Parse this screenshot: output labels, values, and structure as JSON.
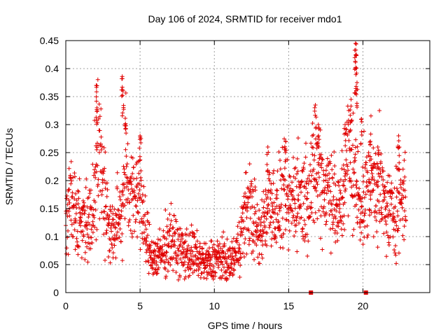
{
  "chart_data": {
    "type": "scatter",
    "title": "Day 106 of 2024, SRMTID for receiver mdo1",
    "xlabel": "GPS time / hours",
    "ylabel": "SRMTID / TECUs",
    "xlim": [
      0,
      24.5
    ],
    "ylim": [
      0,
      0.45
    ],
    "xticks": [
      0,
      5,
      10,
      15,
      20
    ],
    "yticks": [
      0,
      0.05,
      0.1,
      0.15,
      0.2,
      0.25,
      0.3,
      0.35,
      0.4,
      0.45
    ],
    "ytick_labels": [
      "0",
      "0.05",
      "0.1",
      "0.15",
      "0.2",
      "0.25",
      "0.3",
      "0.35",
      "0.4",
      "0.45"
    ],
    "grid": true,
    "marker": "plus",
    "color": "#e00000",
    "series": [
      {
        "name": "SRMTID",
        "trend": [
          [
            0.0,
            0.13
          ],
          [
            0.3,
            0.17
          ],
          [
            0.6,
            0.15
          ],
          [
            1.0,
            0.12
          ],
          [
            1.4,
            0.14
          ],
          [
            1.7,
            0.12
          ],
          [
            2.0,
            0.23
          ],
          [
            2.3,
            0.25
          ],
          [
            2.6,
            0.18
          ],
          [
            3.0,
            0.1
          ],
          [
            3.4,
            0.12
          ],
          [
            3.8,
            0.15
          ],
          [
            4.0,
            0.25
          ],
          [
            4.3,
            0.18
          ],
          [
            4.6,
            0.16
          ],
          [
            5.0,
            0.2
          ],
          [
            5.2,
            0.12
          ],
          [
            5.6,
            0.08
          ],
          [
            6.0,
            0.06
          ],
          [
            6.5,
            0.07
          ],
          [
            7.0,
            0.1
          ],
          [
            7.5,
            0.08
          ],
          [
            8.0,
            0.07
          ],
          [
            8.5,
            0.07
          ],
          [
            9.0,
            0.06
          ],
          [
            9.5,
            0.05
          ],
          [
            10.0,
            0.06
          ],
          [
            10.5,
            0.06
          ],
          [
            11.0,
            0.05
          ],
          [
            11.5,
            0.07
          ],
          [
            12.0,
            0.13
          ],
          [
            12.3,
            0.16
          ],
          [
            12.7,
            0.13
          ],
          [
            13.0,
            0.09
          ],
          [
            13.4,
            0.14
          ],
          [
            13.8,
            0.17
          ],
          [
            14.2,
            0.14
          ],
          [
            14.6,
            0.17
          ],
          [
            15.0,
            0.15
          ],
          [
            15.5,
            0.18
          ],
          [
            16.0,
            0.17
          ],
          [
            16.5,
            0.19
          ],
          [
            17.0,
            0.22
          ],
          [
            17.5,
            0.18
          ],
          [
            17.8,
            0.2
          ],
          [
            18.0,
            0.17
          ],
          [
            18.3,
            0.13
          ],
          [
            18.6,
            0.17
          ],
          [
            19.0,
            0.25
          ],
          [
            19.4,
            0.21
          ],
          [
            19.7,
            0.17
          ],
          [
            20.0,
            0.16
          ],
          [
            20.5,
            0.2
          ],
          [
            21.0,
            0.2
          ],
          [
            21.5,
            0.15
          ],
          [
            22.0,
            0.14
          ],
          [
            22.5,
            0.17
          ],
          [
            22.9,
            0.18
          ]
        ],
        "peaks": [
          [
            2.05,
            0.37
          ],
          [
            2.1,
            0.33
          ],
          [
            3.8,
            0.386
          ],
          [
            3.85,
            0.36
          ],
          [
            4.0,
            0.3
          ],
          [
            5.0,
            0.28
          ],
          [
            16.8,
            0.335
          ],
          [
            17.0,
            0.3
          ],
          [
            18.8,
            0.3
          ],
          [
            19.2,
            0.345
          ],
          [
            19.5,
            0.445
          ],
          [
            19.55,
            0.425
          ],
          [
            19.5,
            0.4
          ],
          [
            19.6,
            0.375
          ],
          [
            19.9,
            0.31
          ],
          [
            20.5,
            0.27
          ],
          [
            21.0,
            0.26
          ],
          [
            22.4,
            0.28
          ],
          [
            13.6,
            0.26
          ],
          [
            14.8,
            0.27
          ]
        ],
        "outliers": [
          [
            16.5,
            0.0
          ],
          [
            20.2,
            0.0
          ]
        ]
      }
    ]
  }
}
